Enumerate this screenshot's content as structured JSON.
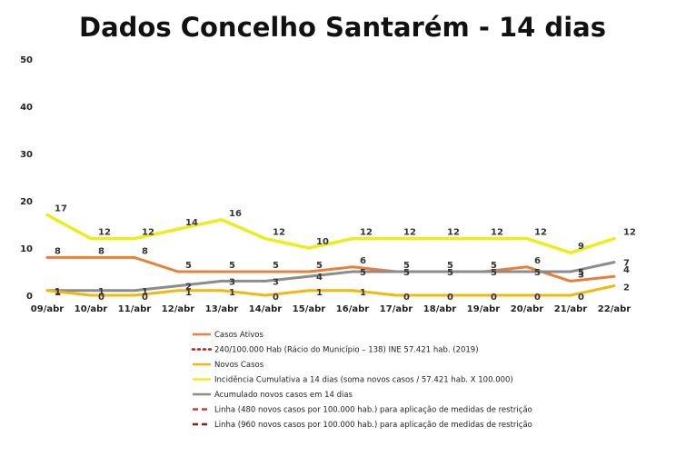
{
  "chart_data": {
    "type": "line",
    "title": "Dados Concelho Santarém - 14 dias",
    "xlabel": "",
    "ylabel": "",
    "ylim": [
      0,
      50
    ],
    "yticks": [
      0,
      10,
      20,
      30,
      40,
      50
    ],
    "grid": false,
    "legend_position": "bottom",
    "categories": [
      "09/abr",
      "10/abr",
      "11/abr",
      "12/abr",
      "13/abr",
      "14/abr",
      "15/abr",
      "16/abr",
      "17/abr",
      "18/abr",
      "19/abr",
      "20/abr",
      "21/abr",
      "22/abr"
    ],
    "series": [
      {
        "name": "Casos Ativos",
        "color": "#E8803C",
        "style": "solid",
        "values": [
          8,
          8,
          8,
          5,
          5,
          5,
          5,
          6,
          5,
          5,
          5,
          6,
          3,
          4
        ],
        "labels": true
      },
      {
        "name": "240/100.000 Hab (Rácio do Município – 138) INE 57.421 hab. (2019)",
        "color": "#B22222",
        "style": "dotted",
        "values": null,
        "labels": false
      },
      {
        "name": "Novos Casos",
        "color": "#F2B80F",
        "style": "solid",
        "values": [
          1,
          0,
          0,
          1,
          1,
          0,
          1,
          1,
          0,
          0,
          0,
          0,
          0,
          2
        ],
        "labels": true
      },
      {
        "name": "Incidência Cumulativa a 14 dias (soma novos casos / 57.421 hab. X 100.000)",
        "color": "#EDED1C",
        "style": "solid",
        "values": [
          17,
          12,
          12,
          14,
          16,
          12,
          10,
          12,
          12,
          12,
          12,
          12,
          9,
          12
        ],
        "labels": true
      },
      {
        "name": "Acumulado novos casos em 14 dias",
        "color": "#8C8C8C",
        "style": "solid",
        "values": [
          1,
          1,
          1,
          2,
          3,
          3,
          4,
          5,
          5,
          5,
          5,
          5,
          5,
          7
        ],
        "labels": true
      },
      {
        "name": "Linha (480 novos casos por 100.000 hab.) para aplicação de medidas de restrição",
        "color": "#D0402A",
        "style": "dashed",
        "values": null,
        "labels": false
      },
      {
        "name": "Linha (960 novos casos por 100.000 hab.) para aplicação de medidas de restrição",
        "color": "#8B1A1A",
        "style": "dashed",
        "values": null,
        "labels": false
      }
    ]
  }
}
